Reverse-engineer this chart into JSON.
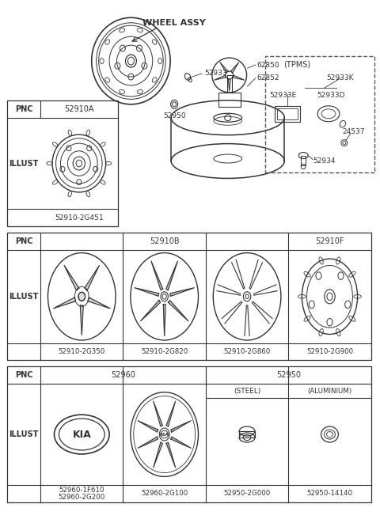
{
  "bg_color": "#ffffff",
  "line_color": "#333333",
  "figsize": [
    4.8,
    6.56
  ],
  "dpi": 100,
  "title": "WHEEL ASSY",
  "parts_labels": [
    "52933",
    "52950",
    "62850",
    "62852"
  ],
  "tpms_label": "(TPMS)",
  "tpms_parts": [
    "52933K",
    "52933E",
    "52933D",
    "24537",
    "52934"
  ],
  "t1_pnc": "52910A",
  "t1_pno": "52910-2G451",
  "t2_pnc_left": "52910B",
  "t2_pnc_right": "52910F",
  "t2_pno": [
    "52910-2G350",
    "52910-2G820",
    "52910-2G860",
    "52910-2G900"
  ],
  "t3_pnc_left": "52960",
  "t3_pnc_right": "52950",
  "t3_sub1": "(STEEL)",
  "t3_sub2": "(ALUMINIUM)",
  "t3_pno": [
    "52960-1F610\n52960-2G200",
    "52960-2G100",
    "52950-2G000",
    "52950-14140"
  ]
}
